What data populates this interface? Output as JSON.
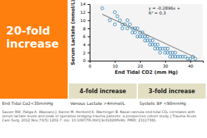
{
  "chart_data": {
    "type": "scatter",
    "title": "20-fold\nincrease",
    "xlabel": "End Tidal CO2 (mm Hg)",
    "ylabel": "Serum Lactate (mmol/L)",
    "annotations": [
      "y = -0.2896x +\nR² = 0.3",
      "4-fold increase",
      "3-fold increase",
      "End Tidal Co2<35mmHg",
      "Venous Lactate >4mmol/L",
      "Systolic BP <90mmHg",
      "Sauser RW, Paliga A, Waxsano J, Kanne M, Henbord K, Wachinger B. Nasal cannula end-tidal CO₂ correlates with serum lactate levels and peak of operative bridging trauma patients: a prospective cohort study. J Trauma Acute Care Surg. 2012 Nov;73(5):1202-7. doi: 10.1097/TA.0b013e31826ffe9b. PMID: 23117381."
    ],
    "series": [
      {
        "type": "scatter",
        "marker": "circle",
        "x": [
          5,
          8,
          10,
          10,
          11,
          12,
          13,
          13,
          14,
          15,
          15,
          16,
          17,
          17,
          18,
          18,
          19,
          19,
          20,
          20,
          21,
          21,
          22,
          22,
          23,
          23,
          24,
          24,
          25,
          25,
          26,
          26,
          27,
          27,
          28,
          28,
          29,
          30,
          30,
          31,
          31,
          32,
          32,
          33,
          33,
          34,
          34,
          35,
          36,
          37,
          38,
          39,
          40,
          41,
          42
        ],
        "values": [
          13,
          10,
          12,
          9,
          11,
          10,
          9,
          8,
          9,
          10,
          8,
          9,
          8,
          7,
          8,
          7,
          8,
          6,
          7,
          6,
          7,
          6,
          6,
          5,
          5,
          6,
          5,
          4,
          4,
          5,
          4,
          3,
          3,
          4,
          3,
          2,
          3,
          3,
          2,
          2,
          3,
          2,
          1,
          1,
          2,
          1,
          2,
          1,
          1,
          1,
          1,
          0.5,
          0.5,
          1,
          0.5
        ]
      },
      {
        "type": "line",
        "line_style": "solid",
        "x": [
          5,
          42
        ],
        "values": [
          11.5,
          0.8
        ]
      }
    ],
    "xlim": [
      0,
      45
    ],
    "ylim": [
      0,
      14
    ],
    "xticks": [
      0,
      10,
      20,
      30,
      40
    ],
    "yticks": [
      0,
      2,
      4,
      6,
      8,
      10,
      12,
      14
    ],
    "grid": false
  }
}
